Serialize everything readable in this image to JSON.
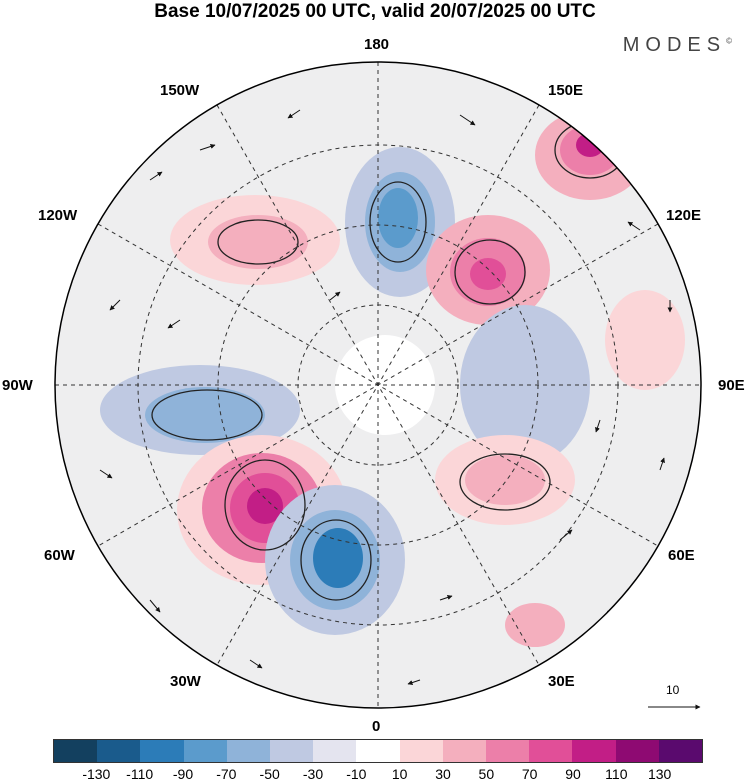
{
  "title": "Base 10/07/2025 00 UTC, valid 20/07/2025 00 UTC",
  "brand": "MODES",
  "brand_mark": "©",
  "longitude_labels": {
    "lon_180": "180",
    "lon_150e": "150E",
    "lon_120e": "120E",
    "lon_90e": "90E",
    "lon_60e": "60E",
    "lon_30e": "30E",
    "lon_0": "0",
    "lon_30w": "30W",
    "lon_60w": "60W",
    "lon_90w": "90W",
    "lon_120w": "120W",
    "lon_150w": "150W"
  },
  "reference_vector": {
    "label": "10"
  },
  "colorbar": {
    "colors": [
      "#13405f",
      "#1a5b8c",
      "#2c7cb8",
      "#5b9bcc",
      "#8fb3d9",
      "#bfc9e2",
      "#e4e4ef",
      "#ffffff",
      "#fbd6d8",
      "#f4afbe",
      "#ec7fa9",
      "#e14f98",
      "#c21e86",
      "#8e0a72",
      "#5a0a6e"
    ],
    "ticks": [
      "-130",
      "-110",
      "-90",
      "-70",
      "-50",
      "-30",
      "-10",
      "10",
      "30",
      "50",
      "70",
      "90",
      "110",
      "130"
    ]
  }
}
